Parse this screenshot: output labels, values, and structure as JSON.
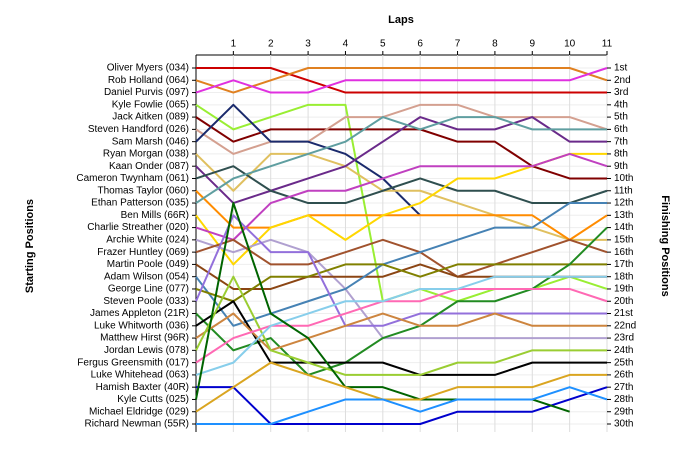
{
  "chart_data": {
    "type": "line",
    "title": "Laps",
    "y_label_left": "Starting Positions",
    "y_label_right": "Finishing Positions",
    "x": [
      0,
      1,
      2,
      3,
      4,
      5,
      6,
      7,
      8,
      9,
      10,
      11
    ],
    "xlim": [
      0,
      11
    ],
    "xticks": [
      1,
      2,
      3,
      4,
      5,
      6,
      7,
      8,
      9,
      10,
      11
    ],
    "ylim": [
      1,
      30
    ],
    "inverted": true,
    "grid": true,
    "finishing_positions": [
      "1st",
      "2nd",
      "3rd",
      "4th",
      "5th",
      "6th",
      "7th",
      "8th",
      "9th",
      "10th",
      "11th",
      "12th",
      "13th",
      "14th",
      "15th",
      "16th",
      "17th",
      "18th",
      "19th",
      "20th",
      "21st",
      "22nd",
      "23rd",
      "24th",
      "25th",
      "26th",
      "27th",
      "28th",
      "29th",
      "30th"
    ],
    "series": [
      {
        "name": "Oliver Myers (034)",
        "color": "#cc0000",
        "values": [
          1,
          1,
          1,
          2,
          3,
          3,
          3,
          3,
          3,
          3,
          3,
          3
        ]
      },
      {
        "name": "Rob Holland (064)",
        "color": "#e08020",
        "values": [
          2,
          3,
          2,
          1,
          1,
          1,
          1,
          1,
          1,
          1,
          1,
          2
        ]
      },
      {
        "name": "Daniel Purvis (097)",
        "color": "#e030e0",
        "values": [
          3,
          2,
          3,
          3,
          2,
          2,
          2,
          2,
          2,
          2,
          2,
          1
        ]
      },
      {
        "name": "Kyle Fowlie (065)",
        "color": "#99ee33",
        "values": [
          4,
          6,
          5,
          4,
          4,
          20,
          19,
          20,
          19,
          19,
          18,
          19
        ]
      },
      {
        "name": "Jack Aitken (089)",
        "color": "#800000",
        "values": [
          5,
          7,
          6,
          6,
          6,
          6,
          6,
          7,
          7,
          9,
          10,
          10
        ]
      },
      {
        "name": "Steven Handford (026)",
        "color": "#d4a090",
        "values": [
          6,
          8,
          7,
          7,
          5,
          5,
          4,
          4,
          5,
          5,
          5,
          6
        ]
      },
      {
        "name": "Sam Marsh (046)",
        "color": "#1a2a6c",
        "values": [
          7,
          4,
          7,
          7,
          8,
          10,
          13,
          null,
          null,
          null,
          null,
          null
        ]
      },
      {
        "name": "Ryan Morgan (038)",
        "color": "#e0c060",
        "values": [
          8,
          11,
          8,
          8,
          9,
          11,
          11,
          12,
          13,
          14,
          15,
          15
        ]
      },
      {
        "name": "Kaan Onder (087)",
        "color": "#6a2a8a",
        "values": [
          9,
          12,
          11,
          10,
          9,
          7,
          5,
          6,
          6,
          5,
          7,
          7
        ]
      },
      {
        "name": "Cameron Twynham (061)",
        "color": "#2f4f4f",
        "values": [
          10,
          9,
          11,
          12,
          12,
          11,
          10,
          11,
          11,
          12,
          12,
          11
        ]
      },
      {
        "name": "Thomas Taylor (060)",
        "color": "#ff8c00",
        "values": [
          11,
          14,
          14,
          13,
          13,
          13,
          13,
          13,
          13,
          13,
          15,
          13
        ]
      },
      {
        "name": "Ethan Patterson (035)",
        "color": "#5f9ea0",
        "values": [
          12,
          10,
          9,
          8,
          7,
          5,
          6,
          5,
          5,
          6,
          6,
          6
        ]
      },
      {
        "name": "Ben Mills (66R)",
        "color": "#ffd700",
        "values": [
          13,
          17,
          14,
          13,
          15,
          13,
          12,
          10,
          10,
          9,
          8,
          8
        ]
      },
      {
        "name": "Charlie Streather (020)",
        "color": "#c040c0",
        "values": [
          14,
          15,
          12,
          11,
          11,
          10,
          9,
          9,
          9,
          9,
          8,
          9
        ]
      },
      {
        "name": "Archie White (024)",
        "color": "#b0a0d0",
        "values": [
          15,
          16,
          15,
          16,
          19,
          23,
          23,
          23,
          23,
          23,
          23,
          23
        ]
      },
      {
        "name": "Frazer Huntley (069)",
        "color": "#a0522d",
        "values": [
          16,
          15,
          17,
          17,
          16,
          15,
          16,
          18,
          17,
          16,
          15,
          16
        ]
      },
      {
        "name": "Martin Poole (049)",
        "color": "#8b4513",
        "values": [
          17,
          19,
          19,
          18,
          18,
          18,
          17,
          18,
          18,
          18,
          18,
          18
        ]
      },
      {
        "name": "Adam Wilson (054)",
        "color": "#4682b4",
        "values": [
          18,
          22,
          21,
          20,
          19,
          17,
          16,
          15,
          14,
          14,
          12,
          12
        ]
      },
      {
        "name": "George Line (077)",
        "color": "#808000",
        "values": [
          19,
          20,
          18,
          18,
          17,
          17,
          18,
          17,
          17,
          17,
          17,
          17
        ]
      },
      {
        "name": "Steven Poole (033)",
        "color": "#9370db",
        "values": [
          20,
          13,
          16,
          16,
          22,
          22,
          21,
          21,
          21,
          21,
          21,
          21
        ]
      },
      {
        "name": "James Appleton (21R)",
        "color": "#228b22",
        "values": [
          21,
          24,
          23,
          26,
          25,
          23,
          22,
          20,
          20,
          19,
          17,
          14
        ]
      },
      {
        "name": "Luke Whitworth (036)",
        "color": "#000000",
        "values": [
          22,
          20,
          25,
          25,
          25,
          25,
          26,
          26,
          26,
          25,
          25,
          25
        ]
      },
      {
        "name": "Matthew Hirst (96R)",
        "color": "#cd853f",
        "values": [
          23,
          21,
          24,
          23,
          22,
          21,
          22,
          22,
          21,
          22,
          22,
          22
        ]
      },
      {
        "name": "Jordan Lewis (078)",
        "color": "#9acd32",
        "values": [
          24,
          18,
          24,
          25,
          26,
          26,
          26,
          25,
          25,
          24,
          24,
          24
        ]
      },
      {
        "name": "Fergus Greensmith (017)",
        "color": "#ff69b4",
        "values": [
          25,
          23,
          22,
          22,
          21,
          20,
          20,
          19,
          19,
          19,
          19,
          20
        ]
      },
      {
        "name": "Luke Whitehead (063)",
        "color": "#87ceeb",
        "values": [
          26,
          25,
          22,
          21,
          20,
          20,
          19,
          19,
          18,
          18,
          18,
          18
        ]
      },
      {
        "name": "Hamish Baxter (40R)",
        "color": "#0000cd",
        "values": [
          27,
          27,
          30,
          30,
          30,
          30,
          30,
          29,
          29,
          29,
          28,
          27
        ]
      },
      {
        "name": "Kyle Cutts (025)",
        "color": "#006400",
        "values": [
          28,
          12,
          21,
          23,
          27,
          27,
          28,
          28,
          28,
          28,
          29,
          null
        ]
      },
      {
        "name": "Michael Eldridge (029)",
        "color": "#daa520",
        "values": [
          29,
          27,
          25,
          26,
          27,
          28,
          28,
          27,
          27,
          27,
          26,
          26
        ]
      },
      {
        "name": "Richard Newman (55R)",
        "color": "#1e90ff",
        "values": [
          30,
          30,
          30,
          29,
          28,
          28,
          29,
          28,
          28,
          28,
          27,
          28
        ]
      }
    ]
  }
}
